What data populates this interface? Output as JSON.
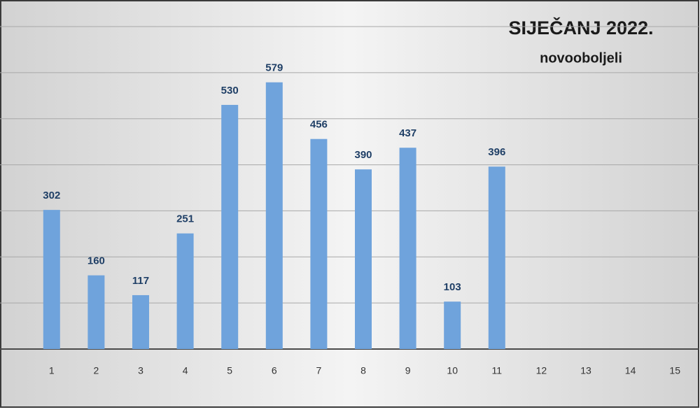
{
  "chart_data": {
    "type": "bar",
    "title": "SIJEČANJ 2022.",
    "subtitle": "novooboljeli",
    "categories": [
      "1",
      "2",
      "3",
      "4",
      "5",
      "6",
      "7",
      "8",
      "9",
      "10",
      "11",
      "12",
      "13",
      "14",
      "15"
    ],
    "values": [
      302,
      160,
      117,
      251,
      530,
      579,
      456,
      390,
      437,
      103,
      396,
      null,
      null,
      null,
      null
    ],
    "color": "#6fa3dc",
    "ylim": [
      0,
      700
    ],
    "yticks": [
      0,
      100,
      200,
      300,
      400,
      500,
      600,
      700
    ],
    "grid": true
  }
}
